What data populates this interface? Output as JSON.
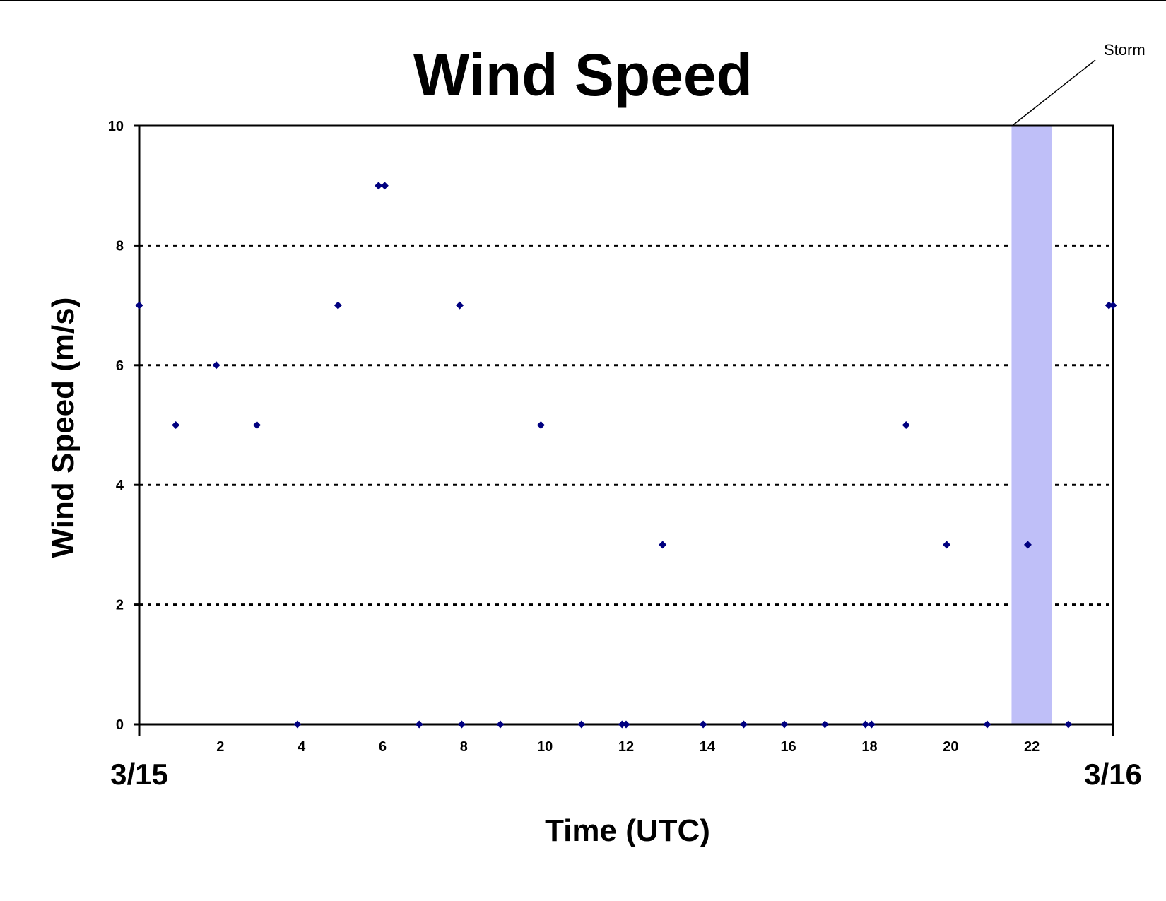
{
  "chart_data": {
    "type": "scatter",
    "title": "Wind Speed",
    "xlabel": "Time (UTC)",
    "ylabel": "Wind Speed (m/s)",
    "xlim": [
      0,
      24
    ],
    "ylim": [
      0,
      10
    ],
    "x_ticks": [
      "2",
      "4",
      "6",
      "8",
      "10",
      "12",
      "14",
      "16",
      "18",
      "20",
      "22"
    ],
    "y_ticks": [
      "0",
      "2",
      "4",
      "6",
      "8",
      "10"
    ],
    "x_start_label": "3/15",
    "x_end_label": "3/16",
    "grid": "horizontal dotted",
    "series": [
      {
        "color": "#000080",
        "x": [
          0,
          0.9,
          1.9,
          2.9,
          3.9,
          4.9,
          5.9,
          6.05,
          6.9,
          7.9,
          7.95,
          8.9,
          9.9,
          10.9,
          11.9,
          12.0,
          12.9,
          13.9,
          14.9,
          15.9,
          16.9,
          17.9,
          18.05,
          18.9,
          19.9,
          20.9,
          21.9,
          22.9,
          23.9,
          24
        ],
        "y": [
          7,
          5,
          6,
          5,
          0,
          7,
          9,
          9,
          0,
          7,
          0,
          0,
          5,
          0,
          0,
          0,
          3,
          0,
          0,
          0,
          0,
          0,
          0,
          5,
          3,
          0,
          3,
          0,
          7,
          7
        ]
      }
    ],
    "annotations": [
      {
        "text": "Storm",
        "x_range": [
          21.5,
          22.5
        ],
        "color": "#bfbff8"
      }
    ]
  }
}
